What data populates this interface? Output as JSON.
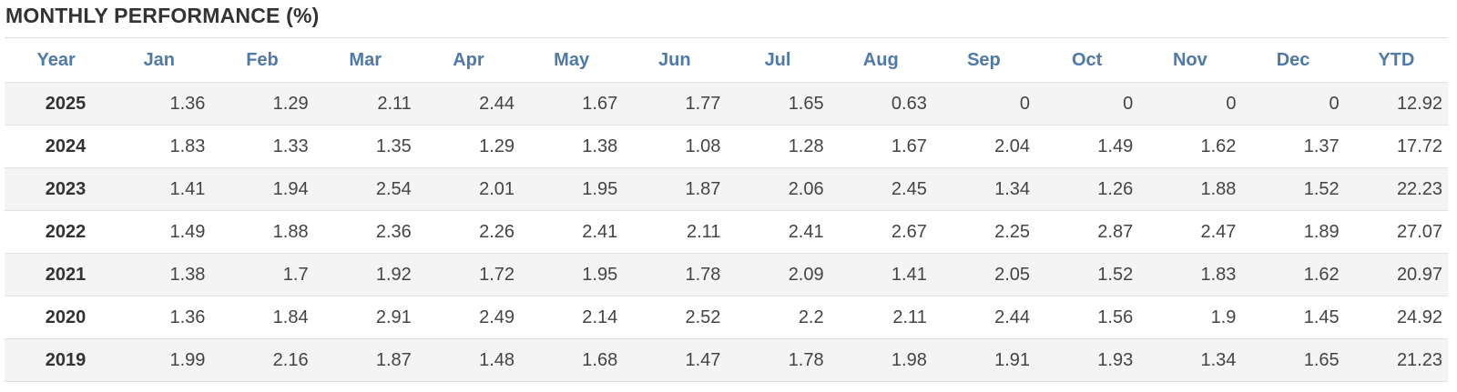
{
  "title": "MONTHLY PERFORMANCE (%)",
  "columns": [
    "Year",
    "Jan",
    "Feb",
    "Mar",
    "Apr",
    "May",
    "Jun",
    "Jul",
    "Aug",
    "Sep",
    "Oct",
    "Nov",
    "Dec",
    "YTD"
  ],
  "rows": [
    [
      "2025",
      "1.36",
      "1.29",
      "2.11",
      "2.44",
      "1.67",
      "1.77",
      "1.65",
      "0.63",
      "0",
      "0",
      "0",
      "0",
      "12.92"
    ],
    [
      "2024",
      "1.83",
      "1.33",
      "1.35",
      "1.29",
      "1.38",
      "1.08",
      "1.28",
      "1.67",
      "2.04",
      "1.49",
      "1.62",
      "1.37",
      "17.72"
    ],
    [
      "2023",
      "1.41",
      "1.94",
      "2.54",
      "2.01",
      "1.95",
      "1.87",
      "2.06",
      "2.45",
      "1.34",
      "1.26",
      "1.88",
      "1.52",
      "22.23"
    ],
    [
      "2022",
      "1.49",
      "1.88",
      "2.36",
      "2.26",
      "2.41",
      "2.11",
      "2.41",
      "2.67",
      "2.25",
      "2.87",
      "2.47",
      "1.89",
      "27.07"
    ],
    [
      "2021",
      "1.38",
      "1.7",
      "1.92",
      "1.72",
      "1.95",
      "1.78",
      "2.09",
      "1.41",
      "2.05",
      "1.52",
      "1.83",
      "1.62",
      "20.97"
    ],
    [
      "2020",
      "1.36",
      "1.84",
      "2.91",
      "2.49",
      "2.14",
      "2.52",
      "2.2",
      "2.11",
      "2.44",
      "1.56",
      "1.9",
      "1.45",
      "24.92"
    ],
    [
      "2019",
      "1.99",
      "2.16",
      "1.87",
      "1.48",
      "1.68",
      "1.47",
      "1.78",
      "1.98",
      "1.91",
      "1.93",
      "1.34",
      "1.65",
      "21.23"
    ]
  ],
  "colors": {
    "header_text": "#4f79a7",
    "title_text": "#333333",
    "stripe": "#f4f4f4"
  }
}
